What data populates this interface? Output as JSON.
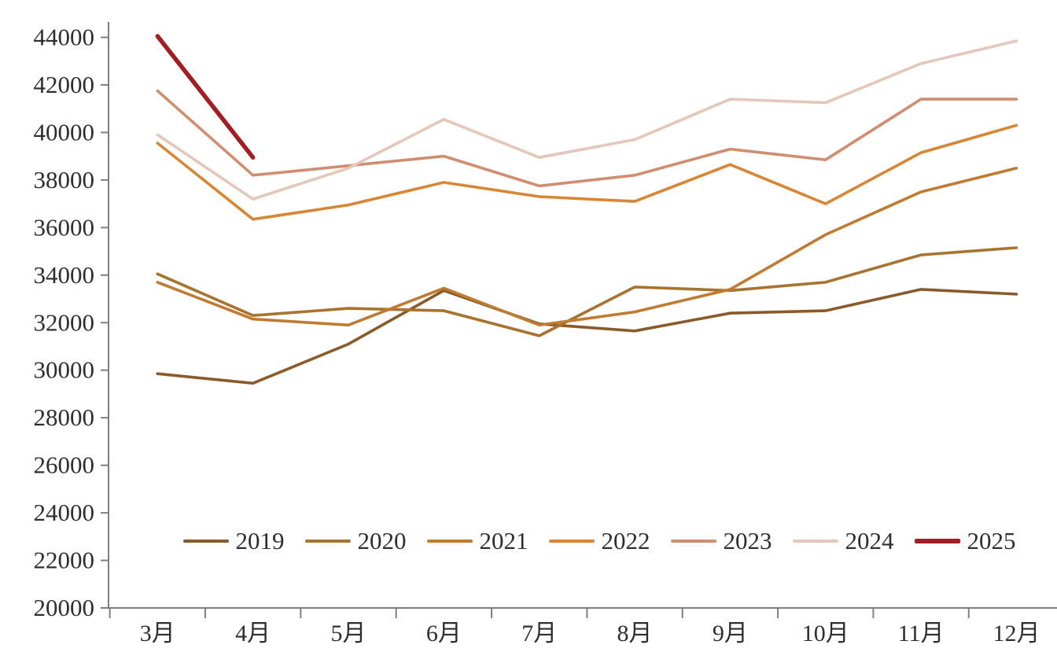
{
  "chart_data": {
    "type": "line",
    "title": "",
    "xlabel": "",
    "ylabel": "",
    "categories": [
      "3月",
      "4月",
      "5月",
      "6月",
      "7月",
      "8月",
      "9月",
      "10月",
      "11月",
      "12月"
    ],
    "y_axis": {
      "min": 20000,
      "max": 44000,
      "tick_step": 2000,
      "tick_labels": [
        "20000",
        "22000",
        "24000",
        "26000",
        "28000",
        "30000",
        "32000",
        "34000",
        "36000",
        "38000",
        "40000",
        "42000",
        "44000"
      ]
    },
    "grid": "off",
    "legend_position": "bottom",
    "axis_color": "#7f7f7f",
    "text_color": "#2e2e2e",
    "series": [
      {
        "name": "2019",
        "color": "#8a5a2a",
        "thick": false,
        "values": [
          29850,
          29450,
          31100,
          33350,
          31950,
          31650,
          32400,
          32500,
          33400,
          33200
        ]
      },
      {
        "name": "2020",
        "color": "#a8722f",
        "thick": false,
        "values": [
          34050,
          32300,
          32600,
          32500,
          31450,
          33500,
          33350,
          33700,
          34850,
          35150
        ]
      },
      {
        "name": "2021",
        "color": "#c07b31",
        "thick": false,
        "values": [
          33700,
          32150,
          31900,
          33450,
          31900,
          32450,
          33400,
          35700,
          37500,
          38500
        ]
      },
      {
        "name": "2022",
        "color": "#d98634",
        "thick": false,
        "values": [
          39550,
          36350,
          36950,
          37900,
          37300,
          37100,
          38650,
          37000,
          39150,
          40300
        ]
      },
      {
        "name": "2023",
        "color": "#d18d70",
        "thick": false,
        "values": [
          41750,
          38200,
          38600,
          39000,
          37750,
          38200,
          39300,
          38850,
          41400,
          41400
        ]
      },
      {
        "name": "2024",
        "color": "#e3c7ba",
        "thick": false,
        "values": [
          39900,
          37200,
          38500,
          40550,
          38950,
          39700,
          41400,
          41250,
          42900,
          43850
        ]
      },
      {
        "name": "2025",
        "color": "#a31e24",
        "thick": true,
        "values": [
          44050,
          38950,
          null,
          null,
          null,
          null,
          null,
          null,
          null,
          null
        ]
      }
    ]
  }
}
